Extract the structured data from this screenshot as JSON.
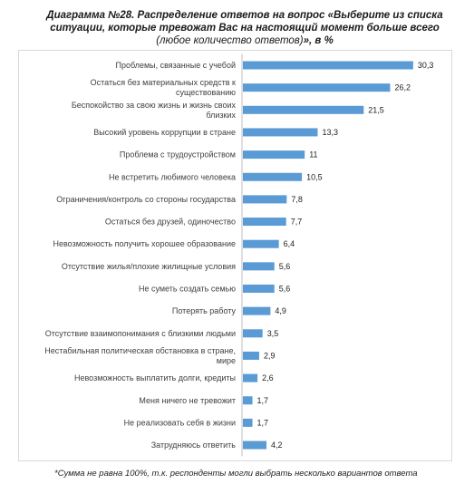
{
  "title": {
    "main": "Диаграмма №28. Распределение ответов на вопрос «Выберите из списка ситуации, которые тревожат Вас на настоящий момент больше всего",
    "qualifier": "(любое количество ответов)",
    "unit": "», в %"
  },
  "footnote": "*Сумма не равна 100%, т.к. респонденты могли выбрать несколько вариантов ответа",
  "chart_data": {
    "type": "bar",
    "orientation": "horizontal",
    "bar_color": "#5b9bd5",
    "grid": false,
    "categories": [
      [
        "Проблемы, связанные с учебой"
      ],
      [
        "Остаться без материальных средств к",
        "существованию"
      ],
      [
        "Беспокойство за свою жизнь и жизнь своих",
        "близких"
      ],
      [
        "Высокий уровень коррупции в стране"
      ],
      [
        "Проблема с трудоустройством"
      ],
      [
        "Не встретить любимого человека"
      ],
      [
        "Ограничения/контроль со стороны государства"
      ],
      [
        "Остаться без друзей, одиночество"
      ],
      [
        "Невозможность получить хорошее образование"
      ],
      [
        "Отсутствие жилья/плохие жилищные условия"
      ],
      [
        "Не суметь создать семью"
      ],
      [
        "Потерять работу"
      ],
      [
        "Отсутствие взаимопонимания с близкими людьми"
      ],
      [
        "Нестабильная политическая обстановка в стране,",
        "мире"
      ],
      [
        "Невозможность выплатить долги, кредиты"
      ],
      [
        "Меня ничего не тревожит"
      ],
      [
        "Не реализовать себя в жизни"
      ],
      [
        "Затрудняюсь ответить"
      ]
    ],
    "values": [
      30.3,
      26.2,
      21.5,
      13.3,
      11,
      10.5,
      7.8,
      7.7,
      6.4,
      5.6,
      5.6,
      4.9,
      3.5,
      2.9,
      2.6,
      1.7,
      1.7,
      4.2
    ],
    "value_labels": [
      "30,3",
      "26,2",
      "21,5",
      "13,3",
      "11",
      "10,5",
      "7,8",
      "7,7",
      "6,4",
      "5,6",
      "5,6",
      "4,9",
      "3,5",
      "2,9",
      "2,6",
      "1,7",
      "1,7",
      "4,2"
    ],
    "xlim": [
      0,
      32
    ]
  }
}
